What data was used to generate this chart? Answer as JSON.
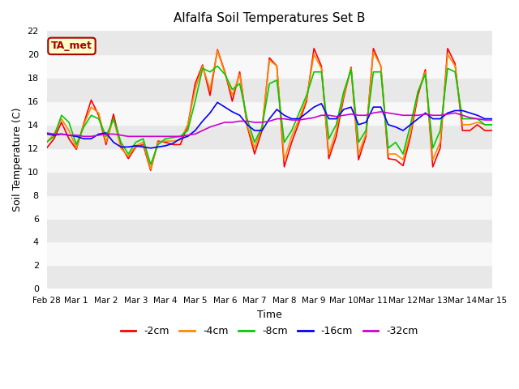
{
  "title": "Alfalfa Soil Temperatures Set B",
  "xlabel": "Time",
  "ylabel": "Soil Temperature (C)",
  "ylim": [
    0,
    22
  ],
  "yticks": [
    0,
    2,
    4,
    6,
    8,
    10,
    12,
    14,
    16,
    18,
    20,
    22
  ],
  "x_labels": [
    "Feb 28",
    "Mar 1",
    "Mar 2",
    "Mar 3",
    "Mar 4",
    "Mar 5",
    "Mar 6",
    "Mar 7",
    "Mar 8",
    "Mar 9",
    "Mar 10",
    "Mar 11",
    "Mar 12",
    "Mar 13",
    "Mar 14",
    "Mar 15"
  ],
  "colors": {
    "-2cm": "#ff0000",
    "-4cm": "#ff8800",
    "-8cm": "#00cc00",
    "-16cm": "#0000ff",
    "-32cm": "#cc00cc"
  },
  "annotation_text": "TA_met",
  "annotation_bg": "#ffffcc",
  "annotation_border": "#aa0000",
  "bg_band_colors": [
    "#e8e8e8",
    "#f8f8f8"
  ],
  "series": {
    "-2cm": [
      12.0,
      12.8,
      14.2,
      12.8,
      11.9,
      14.1,
      16.1,
      14.8,
      12.3,
      14.9,
      12.2,
      11.1,
      12.1,
      12.3,
      10.1,
      12.6,
      12.5,
      12.3,
      12.3,
      13.9,
      17.5,
      19.1,
      16.5,
      20.4,
      18.5,
      16.0,
      18.5,
      13.9,
      11.5,
      13.5,
      19.7,
      19.0,
      10.4,
      12.5,
      14.2,
      16.0,
      20.5,
      19.0,
      11.1,
      13.0,
      16.3,
      18.9,
      11.0,
      13.0,
      20.5,
      19.0,
      11.1,
      11.0,
      10.5,
      13.0,
      16.5,
      18.7,
      10.4,
      12.0,
      20.5,
      19.2,
      13.5,
      13.5,
      14.0,
      13.5,
      13.5
    ],
    "-4cm": [
      12.5,
      13.2,
      14.5,
      13.5,
      12.0,
      14.0,
      15.5,
      15.0,
      12.5,
      14.5,
      12.0,
      11.3,
      12.2,
      12.5,
      10.2,
      12.5,
      12.6,
      12.6,
      12.7,
      14.0,
      17.0,
      19.0,
      17.0,
      20.3,
      18.4,
      16.5,
      18.3,
      14.0,
      12.0,
      13.8,
      19.5,
      19.0,
      11.0,
      13.0,
      14.5,
      16.2,
      20.0,
      18.8,
      11.5,
      13.5,
      16.5,
      18.8,
      11.5,
      13.2,
      20.2,
      19.0,
      11.5,
      11.5,
      11.0,
      13.3,
      16.8,
      18.5,
      11.0,
      12.5,
      20.0,
      19.0,
      14.0,
      14.0,
      14.2,
      14.0,
      14.0
    ],
    "-8cm": [
      12.5,
      13.0,
      14.8,
      14.2,
      12.3,
      13.8,
      14.8,
      14.5,
      13.0,
      14.5,
      12.5,
      11.5,
      12.5,
      12.8,
      10.6,
      12.3,
      12.8,
      12.9,
      13.0,
      13.5,
      16.0,
      18.8,
      18.5,
      19.0,
      18.3,
      17.0,
      17.5,
      14.5,
      12.5,
      13.8,
      17.5,
      17.8,
      12.5,
      13.5,
      15.0,
      16.5,
      18.5,
      18.5,
      12.8,
      14.0,
      16.8,
      18.7,
      12.5,
      13.5,
      18.5,
      18.5,
      12.0,
      12.5,
      11.5,
      14.0,
      16.8,
      18.3,
      12.0,
      13.5,
      18.8,
      18.5,
      14.5,
      14.5,
      14.5,
      14.0,
      14.0
    ],
    "-16cm": [
      13.2,
      13.1,
      13.2,
      13.1,
      13.0,
      12.8,
      12.8,
      13.2,
      13.3,
      12.5,
      12.1,
      12.1,
      12.2,
      12.1,
      12.0,
      12.1,
      12.2,
      12.4,
      12.8,
      13.0,
      13.5,
      14.3,
      15.0,
      15.9,
      15.5,
      15.1,
      14.8,
      14.0,
      13.5,
      13.5,
      14.5,
      15.3,
      14.8,
      14.5,
      14.5,
      15.0,
      15.5,
      15.8,
      14.5,
      14.5,
      15.3,
      15.5,
      14.0,
      14.2,
      15.5,
      15.5,
      14.0,
      13.8,
      13.5,
      14.0,
      14.5,
      15.0,
      14.5,
      14.5,
      15.0,
      15.2,
      15.2,
      15.0,
      14.8,
      14.5,
      14.5
    ],
    "-32cm": [
      13.3,
      13.2,
      13.2,
      13.1,
      13.1,
      13.0,
      13.0,
      13.1,
      13.2,
      13.2,
      13.1,
      13.0,
      13.0,
      13.0,
      13.0,
      13.0,
      13.0,
      13.0,
      13.0,
      13.1,
      13.2,
      13.5,
      13.8,
      14.0,
      14.2,
      14.2,
      14.3,
      14.3,
      14.2,
      14.2,
      14.3,
      14.5,
      14.5,
      14.4,
      14.4,
      14.5,
      14.6,
      14.8,
      14.8,
      14.7,
      14.8,
      14.9,
      14.8,
      14.8,
      15.0,
      15.1,
      15.0,
      14.9,
      14.8,
      14.8,
      14.8,
      14.9,
      14.8,
      14.8,
      14.9,
      15.0,
      14.8,
      14.6,
      14.5,
      14.4,
      14.4
    ]
  }
}
